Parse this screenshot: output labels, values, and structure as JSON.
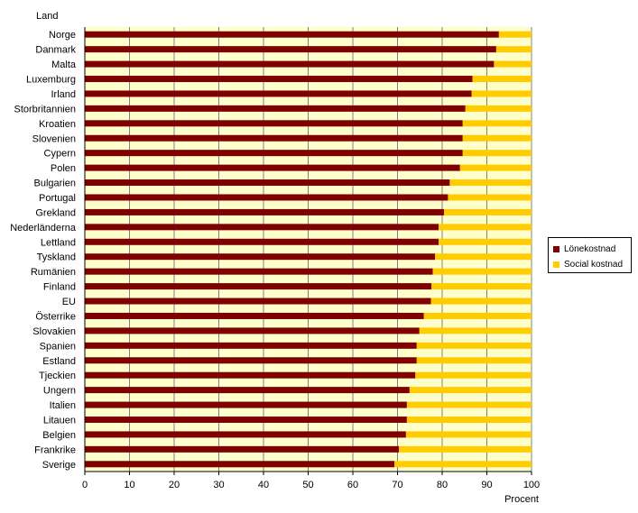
{
  "chart_data": {
    "type": "bar",
    "orientation": "horizontal",
    "stacked": true,
    "categories": [
      "Norge",
      "Danmark",
      "Malta",
      "Luxemburg",
      "Irland",
      "Storbritannien",
      "Kroatien",
      "Slovenien",
      "Cypern",
      "Polen",
      "Bulgarien",
      "Portugal",
      "Grekland",
      "Nederländerna",
      "Lettland",
      "Tyskland",
      "Rumänien",
      "Finland",
      "EU",
      "Österrike",
      "Slovakien",
      "Spanien",
      "Estland",
      "Tjeckien",
      "Ungern",
      "Italien",
      "Litauen",
      "Belgien",
      "Frankrike",
      "Sverige"
    ],
    "series": [
      {
        "name": "Lönekostnad",
        "color": "#800000",
        "values": [
          92.7,
          92.1,
          91.6,
          86.8,
          86.6,
          85.2,
          84.6,
          84.6,
          84.6,
          84.0,
          81.7,
          81.3,
          80.4,
          79.2,
          79.2,
          78.4,
          77.9,
          77.6,
          77.5,
          75.9,
          74.9,
          74.3,
          74.3,
          74.0,
          72.7,
          72.1,
          72.1,
          71.9,
          70.3,
          69.3
        ]
      },
      {
        "name": "Social kostnad",
        "color": "#FFCC00",
        "values": [
          7.3,
          7.9,
          8.4,
          13.2,
          13.4,
          14.8,
          15.4,
          15.4,
          15.4,
          16.0,
          18.3,
          18.7,
          19.6,
          20.8,
          20.8,
          21.6,
          22.1,
          22.4,
          22.5,
          24.1,
          25.1,
          25.7,
          25.7,
          26.0,
          27.3,
          27.9,
          27.9,
          28.1,
          29.7,
          30.7
        ]
      }
    ],
    "xlim": [
      0,
      100
    ],
    "xticks": [
      "0",
      "10",
      "20",
      "30",
      "40",
      "50",
      "60",
      "70",
      "80",
      "90",
      "100"
    ],
    "xlabel": "Procent",
    "ylabel": "Land",
    "grid": true,
    "legend": "right",
    "plot_background": "#FFFFCC",
    "grid_color": "#808080"
  }
}
